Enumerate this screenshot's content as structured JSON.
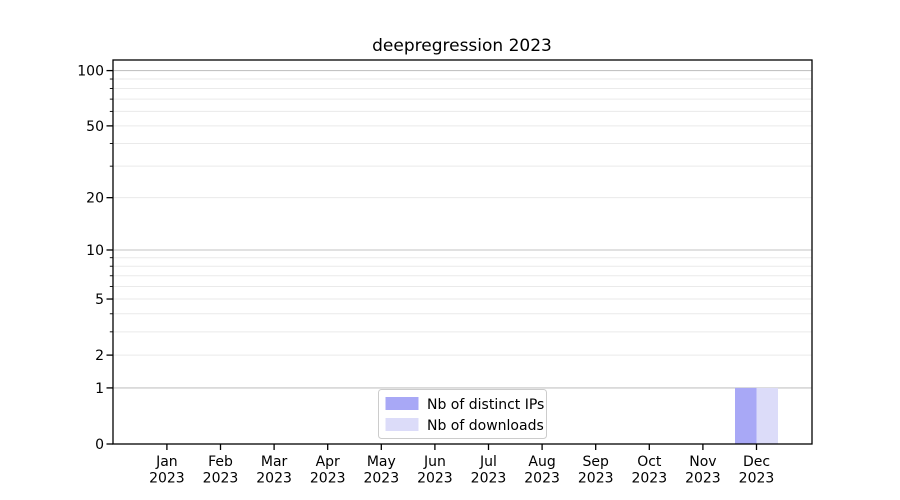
{
  "chart_data": {
    "type": "bar",
    "title": "deepregression 2023",
    "categories": [
      "Jan 2023",
      "Feb 2023",
      "Mar 2023",
      "Apr 2023",
      "May 2023",
      "Jun 2023",
      "Jul 2023",
      "Aug 2023",
      "Sep 2023",
      "Oct 2023",
      "Nov 2023",
      "Dec 2023"
    ],
    "series": [
      {
        "name": "Nb of distinct IPs",
        "color": "#a8a8f6",
        "values": [
          0,
          0,
          0,
          0,
          0,
          0,
          0,
          0,
          0,
          0,
          0,
          1
        ]
      },
      {
        "name": "Nb of downloads",
        "color": "#dcdcf9",
        "values": [
          0,
          0,
          0,
          0,
          0,
          0,
          0,
          0,
          0,
          0,
          0,
          1
        ]
      }
    ],
    "y_axis": {
      "scale": "log10(value+1)",
      "tick_labels": [
        "0",
        "1",
        "2",
        "5",
        "10",
        "20",
        "50",
        "100"
      ],
      "major_ticks": [
        0,
        1,
        2,
        5,
        10,
        20,
        50,
        100
      ],
      "minor_ticks": [
        3,
        4,
        6,
        7,
        8,
        9,
        30,
        40,
        60,
        70,
        80,
        90
      ],
      "decade_gridlines": [
        1,
        10,
        100
      ],
      "ylim": [
        0,
        112
      ]
    },
    "x_axis": {
      "tick_label_lines": 2
    },
    "legend": {
      "entries": [
        "Nb of distinct IPs",
        "Nb of downloads"
      ],
      "location": "bottom-center"
    },
    "grid": true,
    "colors": {
      "grid_decade": "#c3c3c3",
      "grid_minor": "#eaeaea",
      "spine": "#000000",
      "tick": "#000000",
      "legend_border": "#cccccc",
      "legend_background": "#ffffff",
      "background": "#ffffff",
      "text": "#000000"
    }
  }
}
